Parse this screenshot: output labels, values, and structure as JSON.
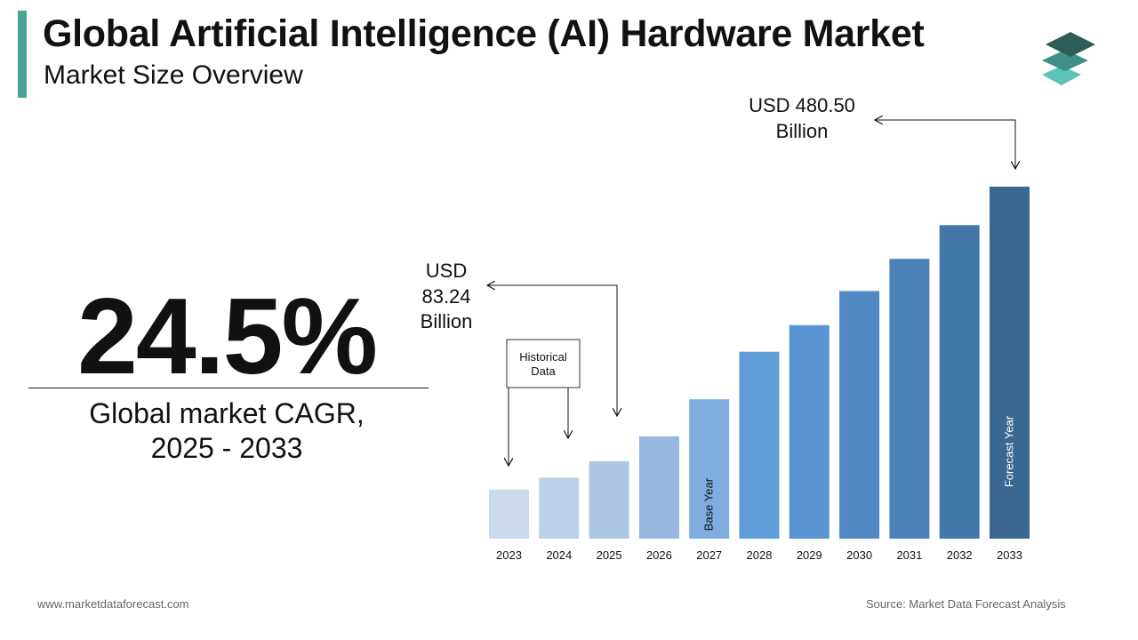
{
  "header": {
    "title": "Global Artificial Intelligence (AI) Hardware Market",
    "subtitle": "Market Size Overview"
  },
  "kpi": {
    "cagr_value": "24.5%",
    "cagr_label_line1": "Global market CAGR,",
    "cagr_label_line2": "2025 - 2033"
  },
  "callouts": {
    "start_line1": "USD",
    "start_line2": "83.24",
    "start_line3": "Billion",
    "end_line1": "USD 480.50",
    "end_line2": "Billion",
    "historical_line1": "Historical",
    "historical_line2": "Data"
  },
  "footer": {
    "website": "www.marketdataforecast.com",
    "source": "Source: Market Data Forecast Analysis"
  },
  "colors": {
    "accent": "#4aa39b",
    "bars": [
      "#ccdaed",
      "#bccfe9",
      "#adc6e6",
      "#97b7df",
      "#7faddf",
      "#5f9ed8",
      "#5895d1",
      "#5089c3",
      "#4a82b9",
      "#4277ab",
      "#3b6891"
    ]
  },
  "chart_data": {
    "type": "bar",
    "categories": [
      "2023",
      "2024",
      "2025",
      "2026",
      "2027",
      "2028",
      "2029",
      "2030",
      "2031",
      "2032",
      "2033"
    ],
    "values": [
      66.9,
      83.24,
      105.8,
      139.7,
      190.3,
      255.2,
      291.5,
      338.0,
      382.0,
      428.0,
      480.5
    ],
    "units": "USD Billion",
    "bar_labels": {
      "2027": "Base Year",
      "2033": "Forecast Year"
    },
    "ylim": [
      0,
      480.5
    ],
    "grid": false,
    "legend": "none"
  }
}
